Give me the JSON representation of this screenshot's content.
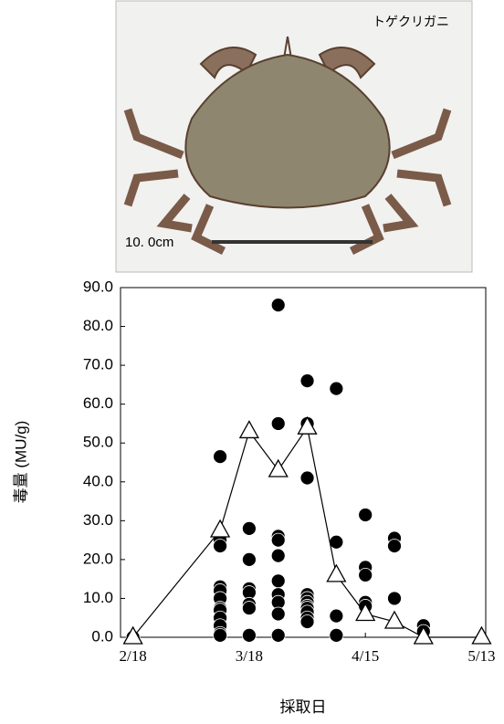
{
  "chart_data": {
    "type": "scatter",
    "annotations": [
      "トゲクリガニ",
      "10. 0cm"
    ],
    "x_label": "採取日",
    "y_label": "毒量 (MU/g)",
    "xlim": [
      -3,
      85
    ],
    "ylim": [
      0,
      90
    ],
    "xticks": [
      {
        "value": 0,
        "label": "2/18"
      },
      {
        "value": 28,
        "label": "3/18"
      },
      {
        "value": 56,
        "label": "4/15"
      },
      {
        "value": 84,
        "label": "5/13"
      }
    ],
    "yticks": [
      {
        "value": 0,
        "label": "0.0"
      },
      {
        "value": 10,
        "label": "10.0"
      },
      {
        "value": 20,
        "label": "20.0"
      },
      {
        "value": 30,
        "label": "30.0"
      },
      {
        "value": 40,
        "label": "40.0"
      },
      {
        "value": 50,
        "label": "50.0"
      },
      {
        "value": 60,
        "label": "60.0"
      },
      {
        "value": 70,
        "label": "70.0"
      },
      {
        "value": 80,
        "label": "80.0"
      },
      {
        "value": 90,
        "label": "90.0"
      }
    ],
    "series": [
      {
        "marker": "circle",
        "color": "#000000",
        "line": false,
        "x": [
          0,
          21,
          21,
          21,
          21,
          21,
          21,
          21,
          21,
          21,
          21,
          21,
          21,
          28,
          28,
          28,
          28,
          28,
          28,
          28,
          35,
          35,
          35,
          35,
          35,
          35,
          35,
          35,
          35,
          35,
          42,
          42,
          42,
          42,
          42,
          42,
          42,
          42,
          42,
          42,
          42,
          49,
          49,
          49,
          49,
          56,
          56,
          56,
          56,
          56,
          63,
          63,
          63,
          70,
          70
        ],
        "values": [
          0,
          46.5,
          25,
          23.5,
          13,
          12,
          10,
          7.5,
          7,
          5,
          3,
          1,
          0.5,
          28,
          20,
          12.5,
          11.5,
          8.5,
          7.5,
          0.5,
          85.5,
          55,
          26,
          25,
          21,
          14.5,
          11,
          9,
          6,
          0.5,
          66,
          55,
          41,
          11,
          10,
          9,
          8,
          7.5,
          6.5,
          5,
          4,
          64,
          24.5,
          5.5,
          0.5,
          31.5,
          18,
          16,
          9,
          8,
          25.5,
          23.5,
          10,
          3,
          1.5
        ]
      },
      {
        "marker": "triangle",
        "color": "#000000",
        "line": true,
        "x": [
          0,
          21,
          28,
          35,
          42,
          49,
          56,
          63,
          70,
          84
        ],
        "values": [
          0,
          27.5,
          53,
          43,
          54,
          16,
          6,
          4,
          0,
          0
        ]
      }
    ]
  }
}
